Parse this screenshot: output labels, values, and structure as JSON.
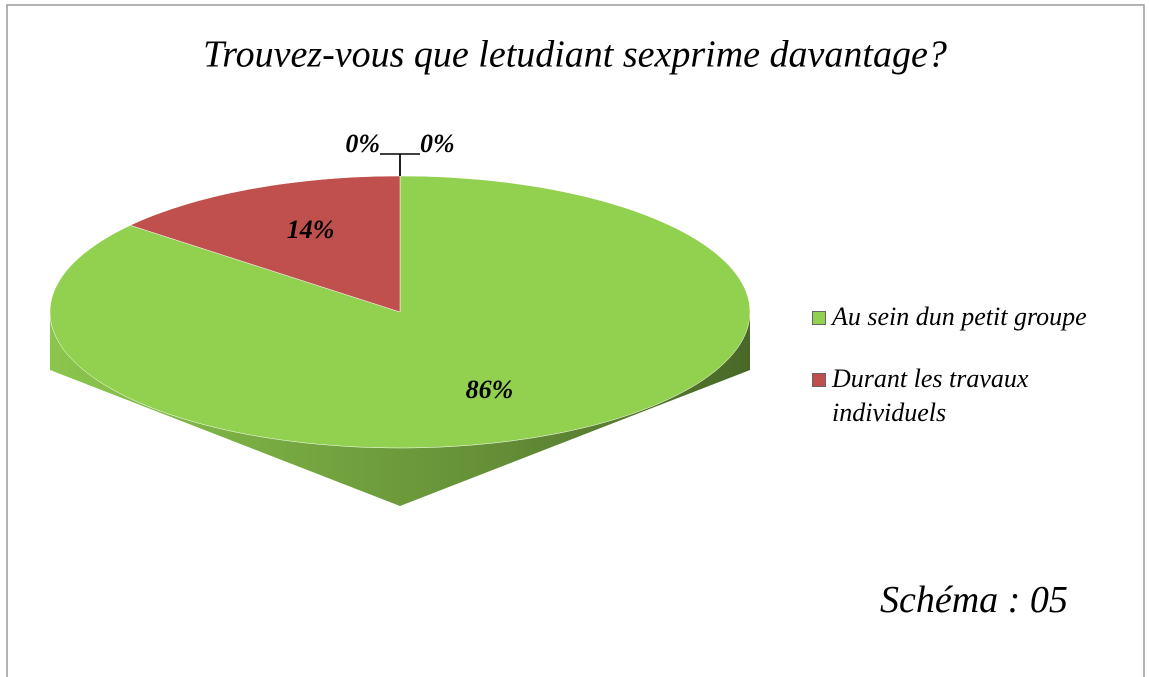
{
  "chart_data": {
    "type": "pie",
    "title": "Trouvez-vous que letudiant sexprime davantage?",
    "categories": [
      "Au sein dun petit groupe",
      "Durant les travaux individuels",
      null,
      null
    ],
    "values": [
      86,
      14,
      0,
      0
    ],
    "value_labels": [
      "86%",
      "14%",
      "0%",
      "0%"
    ],
    "colors": [
      "#92d050",
      "#c0504d",
      "#4f81bd",
      "#8064a2"
    ],
    "legend": "right",
    "annotations": [
      "Schéma : 05"
    ]
  }
}
